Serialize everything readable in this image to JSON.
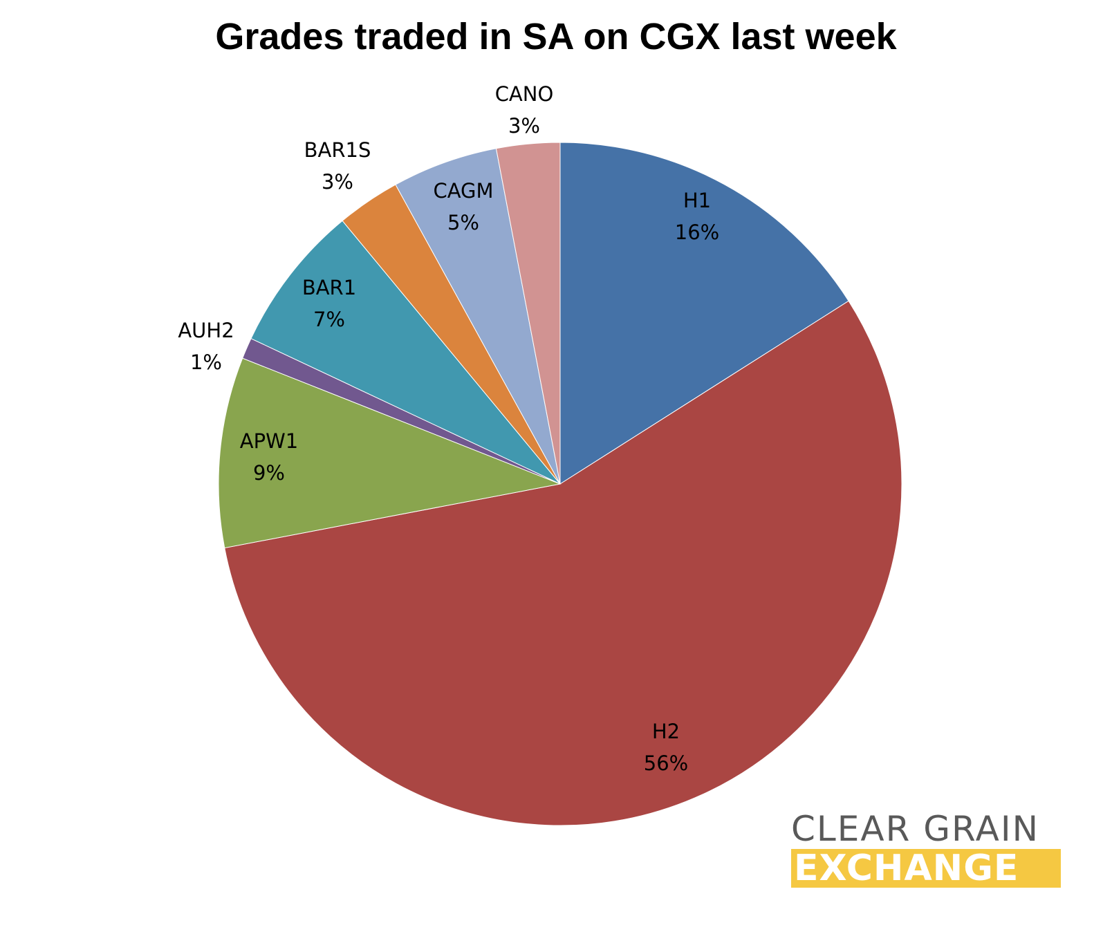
{
  "chart_data": {
    "type": "pie",
    "title": "Grades traded in SA on CGX last week",
    "start_angle_deg": 0,
    "direction": "clockwise",
    "slices": [
      {
        "name": "H1",
        "value": 16,
        "label": "16%",
        "color": "#4572a7"
      },
      {
        "name": "H2",
        "value": 56,
        "label": "56%",
        "color": "#aa4643"
      },
      {
        "name": "APW1",
        "value": 9,
        "label": "9%",
        "color": "#89a54e"
      },
      {
        "name": "AUH2",
        "value": 1,
        "label": "1%",
        "color": "#71588f"
      },
      {
        "name": "BAR1",
        "value": 7,
        "label": "7%",
        "color": "#4198af"
      },
      {
        "name": "BAR1S",
        "value": 3,
        "label": "3%",
        "color": "#db843d"
      },
      {
        "name": "CAGM",
        "value": 5,
        "label": "5%",
        "color": "#93a9cf"
      },
      {
        "name": "CANO",
        "value": 3,
        "label": "3%",
        "color": "#d19392"
      }
    ]
  },
  "logo": {
    "line1": "CLEAR GRAIN",
    "line2": "EXCHANGE",
    "line2_background": "#f5c842"
  }
}
